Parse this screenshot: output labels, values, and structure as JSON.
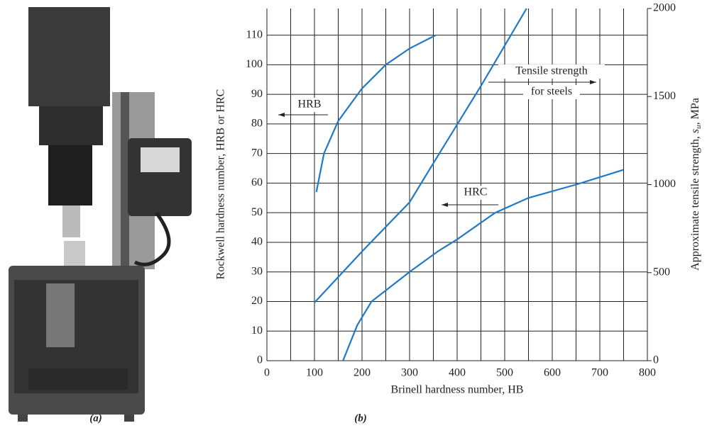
{
  "chart_data": {
    "type": "line",
    "xlabel": "Brinell hardness number, HB",
    "ylabel": "Rockwell hardness number, HRB or HRC",
    "y2label": {
      "before": "Approximate tensile strength, ",
      "symbol": "s",
      "subscript": "u",
      "after": ", MPa"
    },
    "xlim": [
      0,
      800
    ],
    "xticks": [
      0,
      100,
      200,
      300,
      400,
      500,
      600,
      700,
      800
    ],
    "x_minor_grid": [
      50,
      150,
      250,
      350,
      450,
      550,
      650,
      750
    ],
    "ylim": [
      0,
      119
    ],
    "yticks": [
      0,
      10,
      20,
      30,
      40,
      50,
      60,
      70,
      80,
      90,
      100,
      110
    ],
    "y2lim": [
      0,
      2000
    ],
    "y2ticks": [
      0,
      500,
      1000,
      1500,
      2000
    ],
    "grid": true,
    "series": [
      {
        "color": "#1f78c8",
        "x": [
          104,
          120,
          150,
          200,
          250,
          300,
          355
        ],
        "values": [
          57,
          70,
          81,
          92,
          100,
          105.5,
          110
        ]
      },
      {
        "color": "#1f78c8",
        "axis": "y2",
        "x": [
          100,
          200,
          300,
          352,
          450,
          546
        ],
        "values": [
          330,
          620,
          900,
          1130,
          1560,
          2000
        ]
      },
      {
        "color": "#1f78c8",
        "x": [
          160,
          190,
          220,
          260,
          300,
          360,
          400,
          480,
          550,
          650,
          750
        ],
        "values": [
          0,
          12,
          20,
          25,
          30,
          37,
          41,
          50,
          55,
          59.5,
          64.5
        ]
      }
    ],
    "annotations": [
      "HRB",
      "Tensile strength",
      "for steels",
      "HRC"
    ]
  },
  "figure": {
    "captions": [
      "(a)",
      "(b)"
    ]
  }
}
